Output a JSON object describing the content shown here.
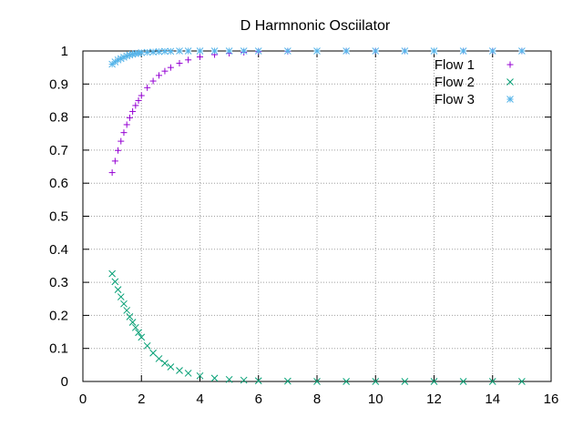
{
  "chart_data": {
    "type": "scatter",
    "title": "D Harmnonic Osciilator",
    "xlabel": "",
    "ylabel": "",
    "xlim": [
      0,
      16
    ],
    "ylim": [
      0,
      1
    ],
    "x_ticks": [
      "0",
      "2",
      "4",
      "6",
      "8",
      "10",
      "12",
      "14",
      "16"
    ],
    "y_ticks": [
      "0",
      "0.1",
      "0.2",
      "0.3",
      "0.4",
      "0.5",
      "0.6",
      "0.7",
      "0.8",
      "0.9",
      "1"
    ],
    "grid": true,
    "legend_position": "top-right",
    "x": [
      1.0,
      1.1,
      1.2,
      1.3,
      1.4,
      1.5,
      1.6,
      1.7,
      1.8,
      1.9,
      2.0,
      2.2,
      2.4,
      2.6,
      2.8,
      3.0,
      3.3,
      3.6,
      4.0,
      4.5,
      5.0,
      5.5,
      6.0,
      7.0,
      8.0,
      9.0,
      10.0,
      11.0,
      12.0,
      13.0,
      14.0,
      15.0
    ],
    "series": [
      {
        "name": "Flow 1",
        "marker": "plus",
        "color": "#9400d3",
        "values": [
          0.632,
          0.667,
          0.699,
          0.727,
          0.753,
          0.777,
          0.798,
          0.817,
          0.835,
          0.85,
          0.865,
          0.889,
          0.909,
          0.926,
          0.939,
          0.95,
          0.963,
          0.973,
          0.982,
          0.989,
          0.993,
          0.996,
          0.998,
          0.999,
          1.0,
          1.0,
          1.0,
          1.0,
          1.0,
          1.0,
          1.0,
          1.0
        ]
      },
      {
        "name": "Flow 2",
        "marker": "cross",
        "color": "#009e73",
        "values": [
          0.326,
          0.302,
          0.278,
          0.256,
          0.235,
          0.215,
          0.196,
          0.179,
          0.163,
          0.148,
          0.134,
          0.108,
          0.086,
          0.069,
          0.055,
          0.044,
          0.033,
          0.025,
          0.017,
          0.01,
          0.006,
          0.004,
          0.002,
          0.001,
          0.0,
          0.0,
          0.0,
          0.0,
          0.0,
          0.0,
          0.0,
          0.0
        ]
      },
      {
        "name": "Flow 3",
        "marker": "star",
        "color": "#56b4e9",
        "values": [
          0.96,
          0.967,
          0.973,
          0.977,
          0.981,
          0.985,
          0.988,
          0.99,
          0.992,
          0.993,
          0.995,
          0.996,
          0.997,
          0.998,
          0.999,
          0.999,
          1.0,
          1.0,
          1.0,
          1.0,
          1.0,
          1.0,
          1.0,
          1.0,
          1.0,
          1.0,
          1.0,
          1.0,
          1.0,
          1.0,
          1.0,
          1.0
        ]
      }
    ]
  }
}
